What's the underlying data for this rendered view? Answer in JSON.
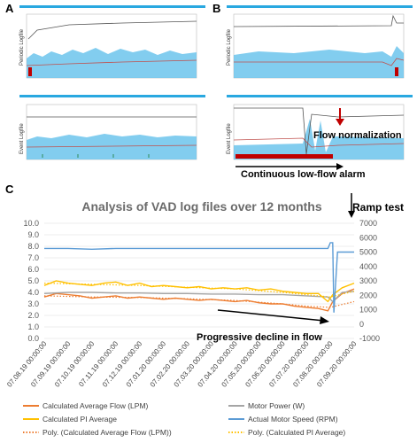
{
  "panels": {
    "A": {
      "letter": "A",
      "periodic_label": "Periodic Logfile",
      "event_label": "Event Logfile"
    },
    "B": {
      "letter": "B",
      "periodic_label": "Periodic Logfile",
      "event_label": "Event Logfile",
      "annotation_flow_normalization": "Flow normalization",
      "annotation_low_flow_alarm": "Continuous low-flow alarm"
    },
    "C": {
      "letter": "C",
      "annotation_ramp_test": "Ramp test",
      "annotation_decline": "Progressive decline in flow"
    }
  },
  "colors": {
    "accent_bar": "#29a8e0",
    "flow": "#ed7d31",
    "power": "#a5a5a5",
    "pi": "#ffc000",
    "speed": "#5b9bd5",
    "alarm": "#c00000"
  },
  "chart_data": {
    "type": "line",
    "title": "Analysis of VAD log files over 12 months",
    "x_ticks": [
      "07.08.19 00:00:00",
      "07.09.19 00:00:00",
      "07.10.19 00:00:00",
      "07.11.19 00:00:00",
      "07.12.19 00:00:00",
      "07.01.20 00:00:00",
      "07.02.20 00:00:00",
      "07.03.20 00:00:00",
      "07.04.20 00:00:00",
      "07.05.20 00:00:00",
      "07.06.20 00:00:00",
      "07.07.20 00:00:00",
      "07.08.20 00:00:00",
      "07.09.20 00:00:00"
    ],
    "y_left": {
      "min": 0,
      "max": 10,
      "ticks": [
        "0.0",
        "1.0",
        "2.0",
        "3.0",
        "4.0",
        "5.0",
        "6.0",
        "7.0",
        "8.0",
        "9.0",
        "10.0"
      ]
    },
    "y_right": {
      "min": -1000,
      "max": 7000,
      "ticks": [
        "-1000",
        "0",
        "1000",
        "2000",
        "3000",
        "4000",
        "5000",
        "6000",
        "7000"
      ]
    },
    "gridlines": true,
    "legend_position": "bottom",
    "series": [
      {
        "name": "Calculated Average Flow (LPM)",
        "axis": "left",
        "color": "#ed7d31",
        "points": [
          [
            0,
            3.6
          ],
          [
            0.5,
            3.9
          ],
          [
            1,
            3.8
          ],
          [
            1.5,
            3.7
          ],
          [
            2,
            3.5
          ],
          [
            2.5,
            3.6
          ],
          [
            3,
            3.7
          ],
          [
            3.5,
            3.5
          ],
          [
            4,
            3.6
          ],
          [
            4.5,
            3.5
          ],
          [
            5,
            3.4
          ],
          [
            5.5,
            3.5
          ],
          [
            6,
            3.4
          ],
          [
            6.5,
            3.3
          ],
          [
            7,
            3.4
          ],
          [
            7.5,
            3.3
          ],
          [
            8,
            3.2
          ],
          [
            8.5,
            3.3
          ],
          [
            9,
            3.1
          ],
          [
            9.5,
            3.0
          ],
          [
            10,
            3.0
          ],
          [
            10.5,
            2.8
          ],
          [
            11,
            2.7
          ],
          [
            11.5,
            2.6
          ],
          [
            11.9,
            2.4
          ],
          [
            12.1,
            3.2
          ],
          [
            12.5,
            3.9
          ],
          [
            13,
            4.3
          ]
        ]
      },
      {
        "name": "Motor Power (W)",
        "axis": "left",
        "color": "#a5a5a5",
        "points": [
          [
            0,
            3.9
          ],
          [
            1,
            4.0
          ],
          [
            2,
            4.0
          ],
          [
            3,
            3.95
          ],
          [
            4,
            3.95
          ],
          [
            5,
            3.9
          ],
          [
            6,
            3.9
          ],
          [
            7,
            3.85
          ],
          [
            8,
            3.85
          ],
          [
            9,
            3.8
          ],
          [
            10,
            3.8
          ],
          [
            11,
            3.7
          ],
          [
            11.9,
            3.6
          ],
          [
            12.1,
            3.2
          ],
          [
            12.5,
            4.0
          ],
          [
            13,
            4.1
          ]
        ]
      },
      {
        "name": "Calculated PI Average",
        "axis": "left",
        "color": "#ffc000",
        "points": [
          [
            0,
            4.6
          ],
          [
            0.5,
            5.0
          ],
          [
            1,
            4.8
          ],
          [
            1.5,
            4.7
          ],
          [
            2,
            4.6
          ],
          [
            2.5,
            4.8
          ],
          [
            3,
            4.9
          ],
          [
            3.5,
            4.6
          ],
          [
            4,
            4.8
          ],
          [
            4.5,
            4.5
          ],
          [
            5,
            4.6
          ],
          [
            5.5,
            4.5
          ],
          [
            6,
            4.4
          ],
          [
            6.5,
            4.5
          ],
          [
            7,
            4.3
          ],
          [
            7.5,
            4.4
          ],
          [
            8,
            4.3
          ],
          [
            8.5,
            4.4
          ],
          [
            9,
            4.2
          ],
          [
            9.5,
            4.3
          ],
          [
            10,
            4.1
          ],
          [
            10.5,
            4.0
          ],
          [
            11,
            3.9
          ],
          [
            11.5,
            3.9
          ],
          [
            11.9,
            3.2
          ],
          [
            12.1,
            3.8
          ],
          [
            12.5,
            4.4
          ],
          [
            13,
            4.8
          ]
        ]
      },
      {
        "name": "Actual Motor Speed (RPM)",
        "axis": "right",
        "color": "#5b9bd5",
        "points": [
          [
            0,
            5250
          ],
          [
            1,
            5250
          ],
          [
            2,
            5200
          ],
          [
            3,
            5250
          ],
          [
            4,
            5250
          ],
          [
            5,
            5250
          ],
          [
            6,
            5250
          ],
          [
            7,
            5250
          ],
          [
            8,
            5250
          ],
          [
            9,
            5250
          ],
          [
            10,
            5250
          ],
          [
            11,
            5250
          ],
          [
            11.9,
            5250
          ],
          [
            12.0,
            5650
          ],
          [
            12.1,
            5650
          ],
          [
            12.15,
            800
          ],
          [
            12.3,
            5000
          ],
          [
            13,
            5000
          ]
        ]
      },
      {
        "name": "Poly. (Calculated Average Flow (LPM))",
        "axis": "left",
        "color": "#ed7d31",
        "dotted": true,
        "points": [
          [
            0,
            3.7
          ],
          [
            2,
            3.6
          ],
          [
            4,
            3.55
          ],
          [
            6,
            3.45
          ],
          [
            8,
            3.3
          ],
          [
            10,
            3.0
          ],
          [
            11,
            2.8
          ],
          [
            12,
            2.7
          ],
          [
            13,
            3.2
          ]
        ]
      },
      {
        "name": "Poly. (Calculated PI Average)",
        "axis": "left",
        "color": "#ffc000",
        "dotted": true,
        "points": [
          [
            0,
            4.8
          ],
          [
            2,
            4.7
          ],
          [
            4,
            4.6
          ],
          [
            6,
            4.45
          ],
          [
            8,
            4.3
          ],
          [
            10,
            4.0
          ],
          [
            11,
            3.8
          ],
          [
            12,
            3.6
          ],
          [
            13,
            4.1
          ]
        ]
      }
    ]
  }
}
